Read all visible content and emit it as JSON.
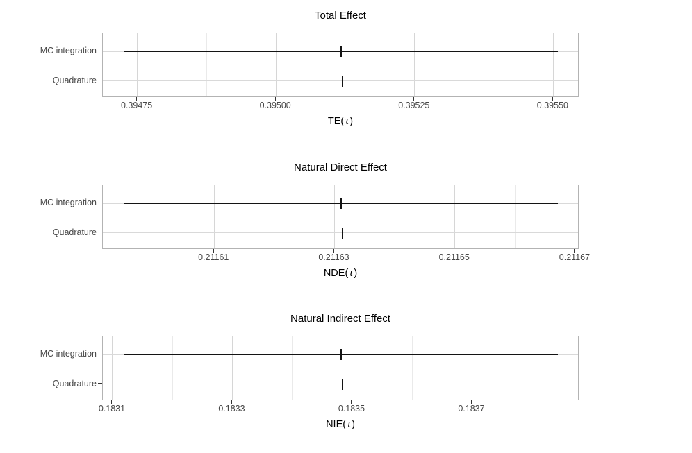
{
  "page": {
    "background": "#ffffff"
  },
  "categories": [
    "MC integration",
    "Quadrature"
  ],
  "style": {
    "panel_border_color": "#b3b3b3",
    "grid_major_color": "#d6d6d6",
    "grid_minor_color": "#eaeaea",
    "data_color": "#141414",
    "axis_text_color": "#474747",
    "tick_mark_color": "#333333",
    "title_color": "#000000"
  },
  "chart_data": [
    {
      "type": "pointrange",
      "title": "Total Effect",
      "xlabel": "TE(τ)",
      "xlabel_parts": {
        "prefix": "TE(",
        "symbol": "τ",
        "suffix": ")"
      },
      "ylabel": "",
      "grid": true,
      "legend": "none",
      "categories": [
        "MC integration",
        "Quadrature"
      ],
      "xlim": [
        0.3946879,
        0.3955471
      ],
      "ticks": [
        0.39475,
        0.395,
        0.39525,
        0.3955
      ],
      "tick_labels": [
        "0.39475",
        "0.39500",
        "0.39525",
        "0.39550"
      ],
      "minor_ticks": [
        0.394875,
        0.395125,
        0.395375
      ],
      "series": [
        {
          "name": "MC integration",
          "estimate": 0.3951175,
          "lower": 0.394727,
          "upper": 0.395508
        },
        {
          "name": "Quadrature",
          "estimate": 0.39512,
          "lower": 0.39512,
          "upper": 0.39512
        }
      ]
    },
    {
      "type": "pointrange",
      "title": "Natural Direct Effect",
      "xlabel": "NDE(τ)",
      "xlabel_parts": {
        "prefix": "NDE(",
        "symbol": "τ",
        "suffix": ")"
      },
      "ylabel": "",
      "grid": true,
      "legend": "none",
      "categories": [
        "MC integration",
        "Quadrature"
      ],
      "xlim": [
        0.2115915,
        0.2116707
      ],
      "ticks": [
        0.21161,
        0.21163,
        0.21165,
        0.21167
      ],
      "tick_labels": [
        "0.21161",
        "0.21163",
        "0.21165",
        "0.21167"
      ],
      "minor_ticks": [
        0.2116,
        0.21162,
        0.21164,
        0.21166
      ],
      "series": [
        {
          "name": "MC integration",
          "estimate": 0.2116311,
          "lower": 0.2115951,
          "upper": 0.2116671
        },
        {
          "name": "Quadrature",
          "estimate": 0.2116313,
          "lower": 0.2116313,
          "upper": 0.2116313
        }
      ]
    },
    {
      "type": "pointrange",
      "title": "Natural Indirect Effect",
      "xlabel": "NIE(τ)",
      "xlabel_parts": {
        "prefix": "NIE(",
        "symbol": "τ",
        "suffix": ")"
      },
      "ylabel": "",
      "grid": true,
      "legend": "none",
      "categories": [
        "MC integration",
        "Quadrature"
      ],
      "xlim": [
        0.1830838,
        0.1838792
      ],
      "ticks": [
        0.1831,
        0.1833,
        0.1835,
        0.1837
      ],
      "tick_labels": [
        "0.1831",
        "0.1833",
        "0.1835",
        "0.1837"
      ],
      "minor_ticks": [
        0.1832,
        0.1834,
        0.1836,
        0.1838
      ],
      "series": [
        {
          "name": "MC integration",
          "estimate": 0.1834815,
          "lower": 0.18312,
          "upper": 0.183843
        },
        {
          "name": "Quadrature",
          "estimate": 0.1834838,
          "lower": 0.1834838,
          "upper": 0.1834838
        }
      ]
    }
  ]
}
